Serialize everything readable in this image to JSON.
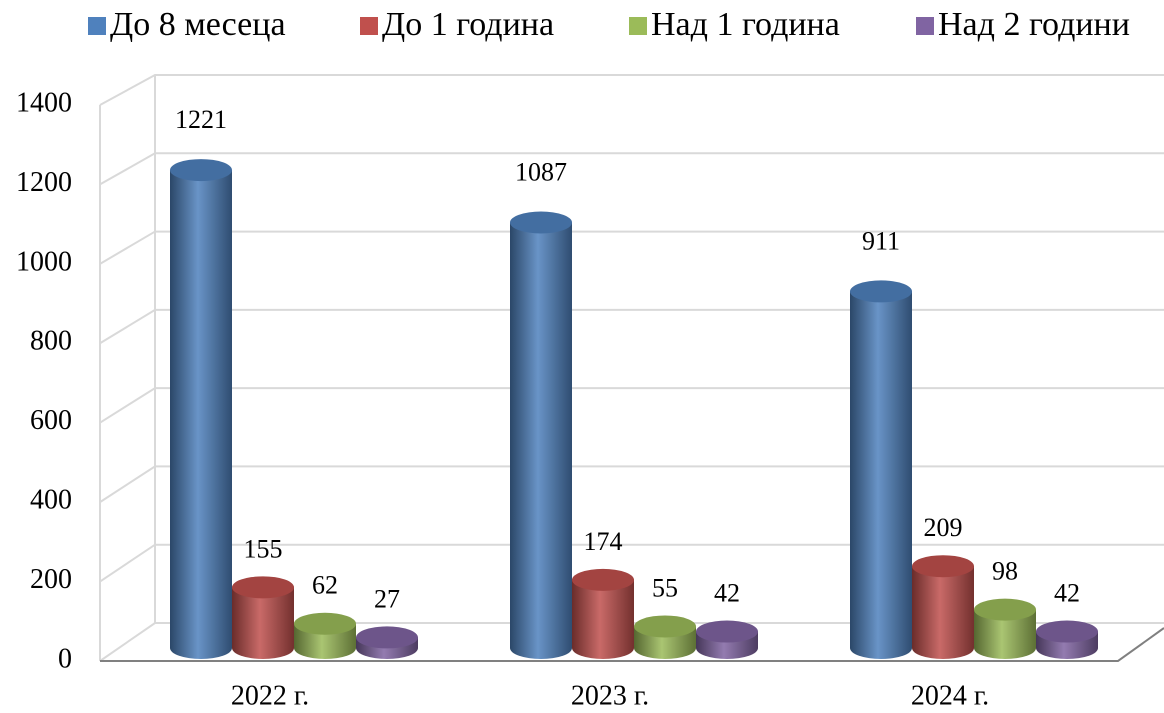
{
  "chart_data": {
    "type": "bar3d",
    "categories": [
      "2022 г.",
      "2023 г.",
      "2024 г."
    ],
    "series": [
      {
        "name": "До 8 месеца",
        "color": "#4f81bd",
        "values": [
          1221,
          1087,
          911
        ]
      },
      {
        "name": "До 1 година",
        "color": "#c0504d",
        "values": [
          155,
          174,
          209
        ]
      },
      {
        "name": "Над 1 година",
        "color": "#9bbb59",
        "values": [
          62,
          55,
          98
        ]
      },
      {
        "name": "Над 2 години",
        "color": "#8064a2",
        "values": [
          27,
          42,
          42
        ]
      }
    ],
    "ylim": [
      0,
      1400
    ],
    "yticks": [
      0,
      200,
      400,
      600,
      800,
      1000,
      1200,
      1400
    ],
    "grid": true,
    "legend": "top"
  }
}
